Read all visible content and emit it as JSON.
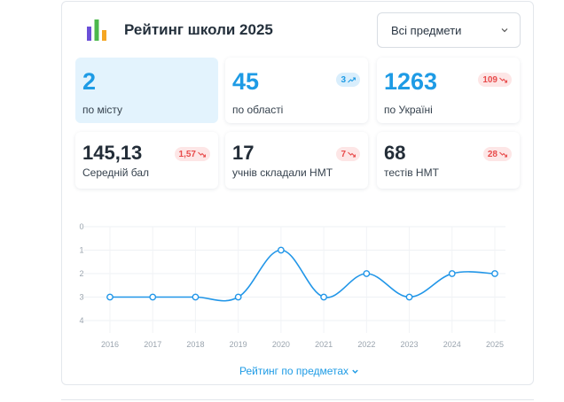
{
  "header": {
    "title": "Рейтинг школи 2025",
    "logo_icon": "bar-chart-logo-icon"
  },
  "subject_select": {
    "value": "Всі предмети"
  },
  "stats_row1": [
    {
      "value": "2",
      "label": "по місту",
      "badge": null
    },
    {
      "value": "45",
      "label": "по області",
      "badge": {
        "value": "3",
        "trend": "up"
      }
    },
    {
      "value": "1263",
      "label": "по Україні",
      "badge": {
        "value": "109",
        "trend": "down"
      }
    }
  ],
  "stats_row2": [
    {
      "value": "145,13",
      "label": "Середній бал",
      "badge": {
        "value": "1,57",
        "trend": "down"
      }
    },
    {
      "value": "17",
      "label": "учнів складали НМТ",
      "badge": {
        "value": "7",
        "trend": "down"
      }
    },
    {
      "value": "68",
      "label": "тестів НМТ",
      "badge": {
        "value": "28",
        "trend": "down"
      }
    }
  ],
  "chart_data": {
    "type": "line",
    "x": [
      "2016",
      "2017",
      "2018",
      "2019",
      "2020",
      "2021",
      "2022",
      "2023",
      "2024",
      "2025"
    ],
    "series": [
      {
        "values": [
          3,
          3,
          3,
          3,
          1,
          3,
          2,
          3,
          2,
          2
        ]
      }
    ],
    "ylim": [
      0,
      4
    ],
    "y_ticks": [
      "0",
      "1",
      "2",
      "3",
      "4"
    ],
    "y_reversed": true,
    "grid": true,
    "color": "#2196e8"
  },
  "footer": {
    "more_label": "Рейтинг по предметах"
  },
  "colors": {
    "accent": "#1e9be5",
    "negative": "#e84b4b",
    "highlight_bg": "#e3f3fd"
  }
}
